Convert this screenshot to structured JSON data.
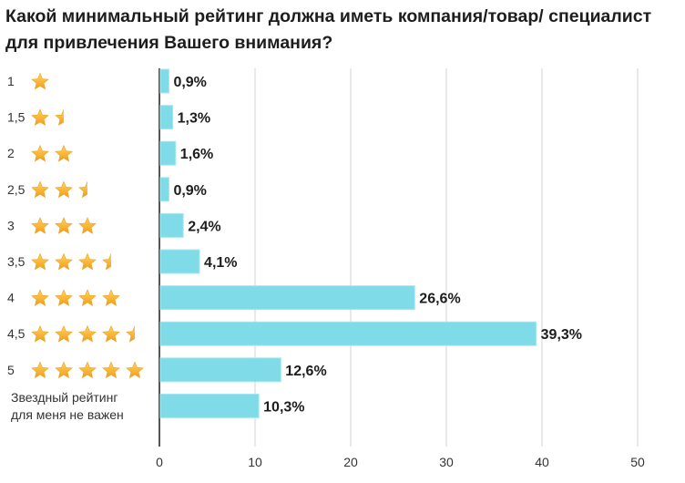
{
  "chart_data": {
    "type": "bar",
    "orientation": "horizontal",
    "title": "Какой минимальный рейтинг должна иметь компания/товар/ специалист для привлечения Вашего внимания?",
    "categories": [
      "1",
      "1,5",
      "2",
      "2,5",
      "3",
      "3,5",
      "4",
      "4,5",
      "5",
      "Звездный рейтинг для меня не важен"
    ],
    "category_lines": [
      [
        "1"
      ],
      [
        "1,5"
      ],
      [
        "2"
      ],
      [
        "2,5"
      ],
      [
        "3"
      ],
      [
        "3,5"
      ],
      [
        "4"
      ],
      [
        "4,5"
      ],
      [
        "5"
      ],
      [
        "Звездный рейтинг",
        "для меня не важен"
      ]
    ],
    "stars": [
      1,
      1.5,
      2,
      2.5,
      3,
      3.5,
      4,
      4.5,
      5,
      0
    ],
    "values": [
      0.9,
      1.3,
      1.6,
      0.9,
      2.4,
      4.1,
      26.6,
      39.3,
      12.6,
      10.3
    ],
    "data_labels": [
      "0,9%",
      "1,3%",
      "1,6%",
      "0,9%",
      "2,4%",
      "4,1%",
      "26,6%",
      "39,3%",
      "12,6%",
      "10,3%"
    ],
    "xlim": [
      0,
      50
    ],
    "xticks": [
      0,
      10,
      20,
      30,
      40,
      50
    ],
    "xtick_labels": [
      "0",
      "10",
      "20",
      "30",
      "40",
      "50"
    ],
    "grid": true,
    "xlabel": "",
    "ylabel": "",
    "colors": {
      "bar": "#7fdbe8",
      "bar_edge": "#a9e8f1",
      "star": "#f7b52c",
      "star_light": "#ffd75a",
      "grid": "#e2e2e2",
      "axis": "#555555",
      "label": "#1d1d1d"
    }
  }
}
